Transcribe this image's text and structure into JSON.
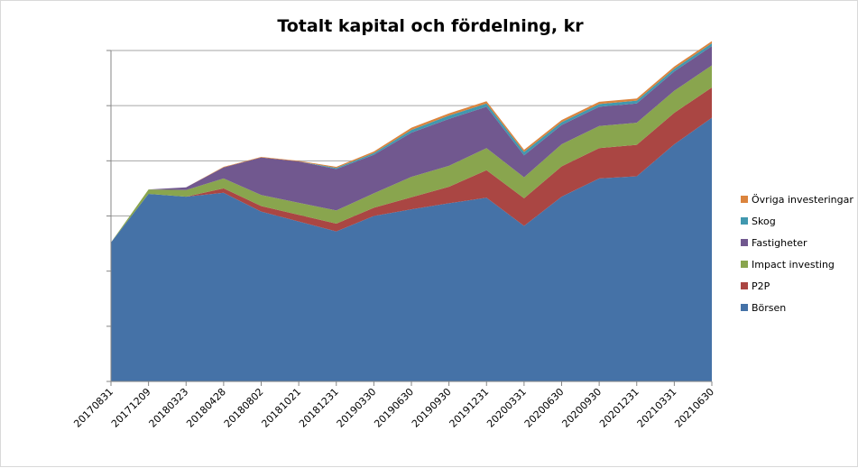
{
  "chart_data": {
    "type": "area",
    "stacked": true,
    "title": "Totalt kapital och fördelning, kr",
    "xlabel": "",
    "ylabel": "",
    "y_tick_labels_shown": false,
    "grid": true,
    "legend_position": "right",
    "ylim": [
      0,
      600
    ],
    "categories": [
      "20170831",
      "20171209",
      "20180323",
      "20180428",
      "20180802",
      "20181021",
      "20181231",
      "20190330",
      "20190630",
      "20190930",
      "20191231",
      "20200331",
      "20200630",
      "20200930",
      "20201231",
      "20210331",
      "20210630"
    ],
    "series": [
      {
        "name": "Börsen",
        "color": "#4572a7",
        "values": [
          252,
          340,
          335,
          342,
          308,
          290,
          272,
          300,
          312,
          323,
          333,
          282,
          335,
          368,
          372,
          430,
          478
        ]
      },
      {
        "name": "P2P",
        "color": "#aa4643",
        "values": [
          0,
          0,
          0,
          8,
          10,
          12,
          14,
          15,
          22,
          30,
          50,
          50,
          55,
          55,
          57,
          57,
          55
        ]
      },
      {
        "name": "Impact investing",
        "color": "#89a54e",
        "values": [
          0,
          8,
          12,
          18,
          20,
          22,
          24,
          26,
          37,
          38,
          40,
          38,
          40,
          40,
          40,
          40,
          40
        ]
      },
      {
        "name": "Fastigheter",
        "color": "#71588f",
        "values": [
          0,
          0,
          5,
          20,
          68,
          75,
          75,
          70,
          80,
          85,
          75,
          40,
          35,
          35,
          35,
          35,
          35
        ]
      },
      {
        "name": "Skog",
        "color": "#4198af",
        "values": [
          0,
          0,
          0,
          0,
          0,
          0,
          2,
          3,
          5,
          6,
          6,
          6,
          5,
          5,
          5,
          5,
          5
        ]
      },
      {
        "name": "Övriga investeringar",
        "color": "#db843d",
        "values": [
          0,
          0,
          0,
          1,
          1,
          1,
          2,
          3,
          4,
          4,
          4,
          4,
          4,
          4,
          4,
          4,
          4
        ]
      }
    ]
  }
}
